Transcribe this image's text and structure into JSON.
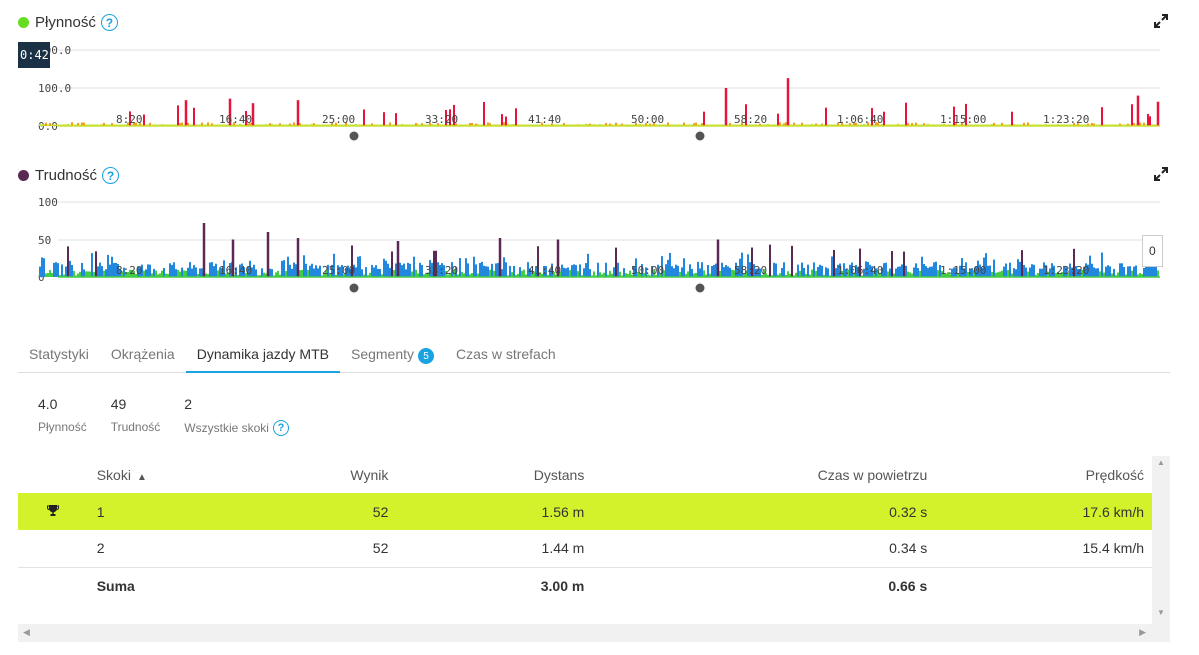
{
  "charts": {
    "plynnosc": {
      "title": "Płynność",
      "dot_color": "#66dd22",
      "y_ticks": [
        "200.0",
        "100.0",
        "0.0"
      ],
      "x_ticks": [
        "8:20",
        "16:40",
        "25:00",
        "33:20",
        "41:40",
        "50:00",
        "58:20",
        "1:06:40",
        "1:15:00",
        "1:23:20"
      ],
      "tooltip": "0:42",
      "ylim": [
        0,
        200
      ],
      "colors": {
        "low": "#c8e030",
        "mid": "#f0a020",
        "high": "#e8143c"
      }
    },
    "trudnosc": {
      "title": "Trudność",
      "dot_color": "#5a2a55",
      "y_ticks": [
        "100",
        "50",
        "0"
      ],
      "x_ticks": [
        "8:20",
        "16:40",
        "25:00",
        "33:20",
        "41:40",
        "50:00",
        "58:20",
        "1:06:40",
        "1:15:00",
        "1:23:20"
      ],
      "value_box": "0",
      "ylim": [
        0,
        100
      ],
      "colors": {
        "low": "#44cc44",
        "mid": "#2288dd",
        "high": "#5a2a55"
      }
    }
  },
  "tabs": [
    {
      "label": "Statystyki"
    },
    {
      "label": "Okrążenia"
    },
    {
      "label": "Dynamika jazdy MTB"
    },
    {
      "label": "Segmenty",
      "badge": "5"
    },
    {
      "label": "Czas w strefach"
    }
  ],
  "summary": {
    "plynnosc": {
      "value": "4.0",
      "label": "Płynność"
    },
    "trudnosc": {
      "value": "49",
      "label": "Trudność"
    },
    "skoki": {
      "value": "2",
      "label": "Wszystkie skoki"
    }
  },
  "table": {
    "headers": {
      "skoki": "Skoki",
      "wynik": "Wynik",
      "dystans": "Dystans",
      "czas": "Czas w powietrzu",
      "predkosc": "Prędkość"
    },
    "rows": [
      {
        "skoki": "1",
        "wynik": "52",
        "dystans": "1.56 m",
        "czas": "0.32 s",
        "predkosc": "17.6 km/h"
      },
      {
        "skoki": "2",
        "wynik": "52",
        "dystans": "1.44 m",
        "czas": "0.34 s",
        "predkosc": "15.4 km/h"
      }
    ],
    "total": {
      "label": "Suma",
      "dystans": "3.00 m",
      "czas": "0.66 s"
    }
  }
}
